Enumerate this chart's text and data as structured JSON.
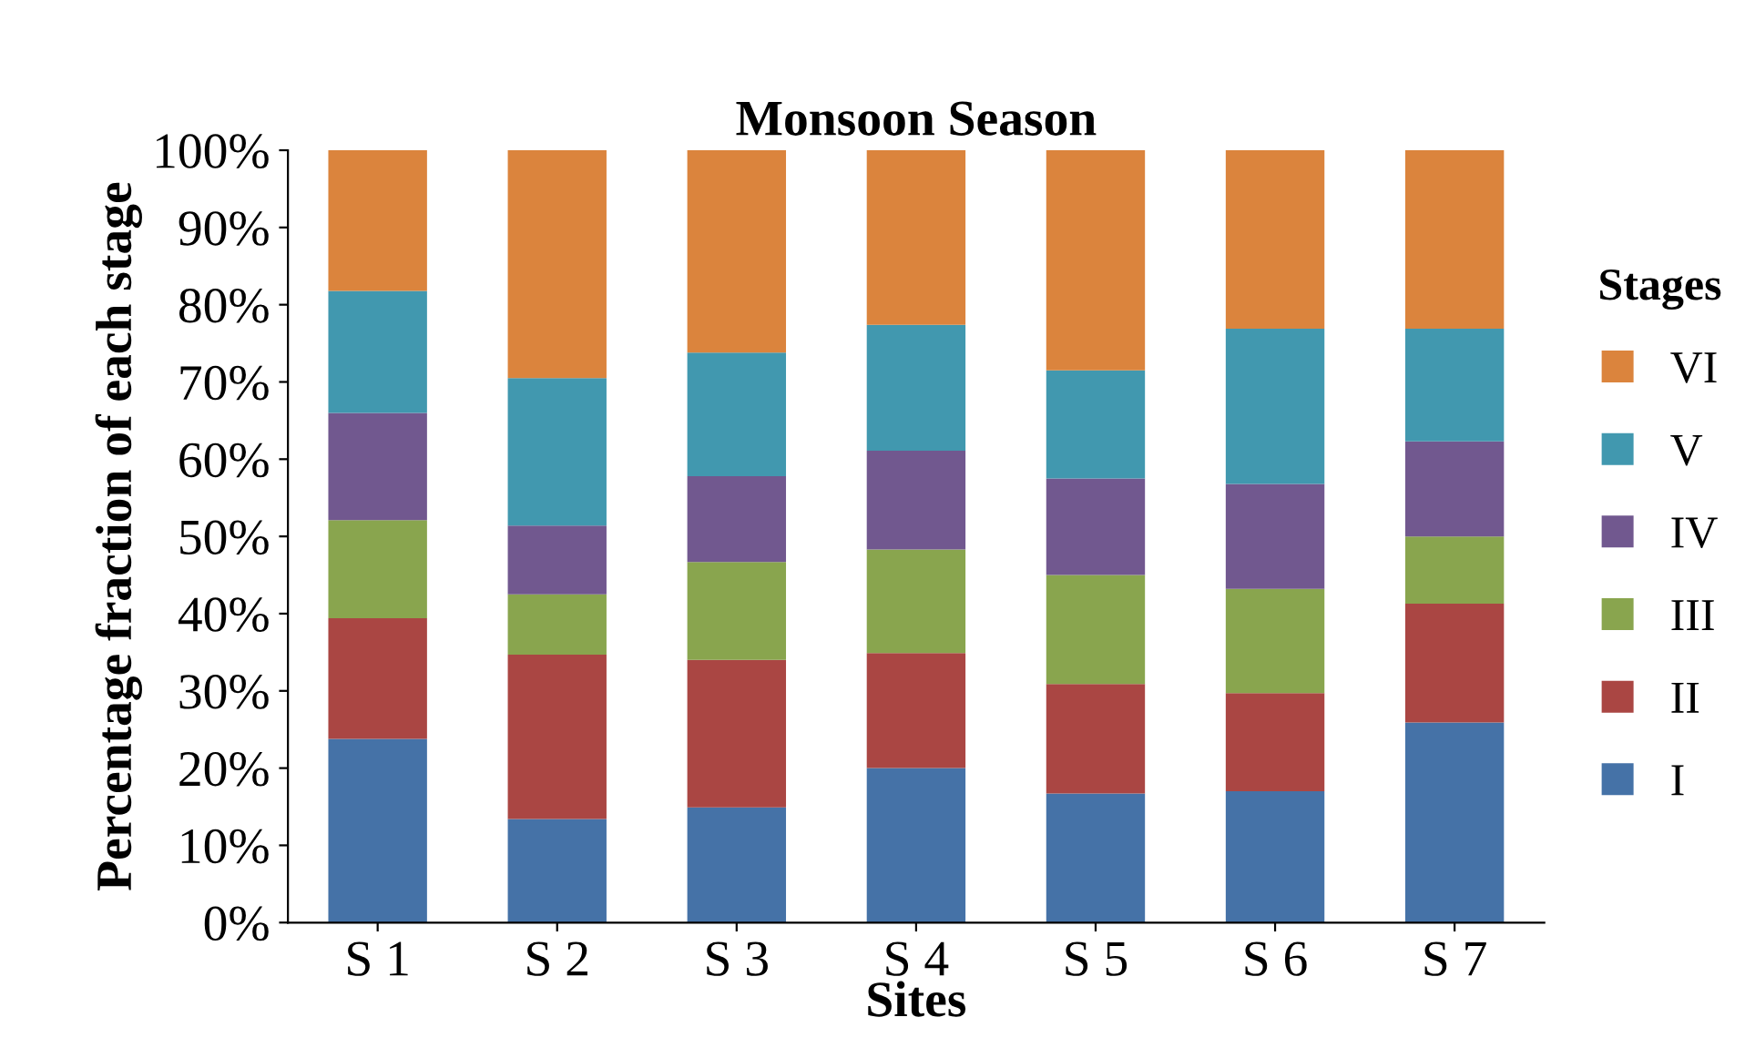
{
  "chart_data": {
    "type": "bar",
    "stacked": true,
    "title": "Monsoon Season",
    "xlabel": "Sites",
    "ylabel": "Percentage fraction of each stage",
    "legend_title": "Stages",
    "legend": "right",
    "categories": [
      "S 1",
      "S 2",
      "S 3",
      "S 4",
      "S 5",
      "S 6",
      "S 7"
    ],
    "series": [
      {
        "name": "I",
        "color": "#4572a7",
        "values": [
          23.8,
          13.4,
          14.9,
          20.0,
          16.7,
          17.0,
          25.9
        ]
      },
      {
        "name": "II",
        "color": "#aa4643",
        "values": [
          15.6,
          21.3,
          19.1,
          14.9,
          14.2,
          12.7,
          15.4
        ]
      },
      {
        "name": "III",
        "color": "#89a54e",
        "values": [
          12.7,
          7.8,
          12.7,
          13.4,
          14.1,
          13.5,
          8.7
        ]
      },
      {
        "name": "IV",
        "color": "#71588f",
        "values": [
          13.9,
          8.9,
          11.1,
          12.8,
          12.5,
          13.6,
          12.3
        ]
      },
      {
        "name": "V",
        "color": "#4198af",
        "values": [
          15.8,
          19.1,
          16.0,
          16.3,
          14.0,
          20.1,
          14.6
        ]
      },
      {
        "name": "VI",
        "color": "#db843d",
        "values": [
          18.2,
          29.5,
          26.2,
          22.6,
          28.5,
          23.1,
          23.1
        ]
      }
    ],
    "ylim": [
      0,
      100
    ],
    "yticks": [
      {
        "value": 0,
        "label": "0%"
      },
      {
        "value": 10,
        "label": "10%"
      },
      {
        "value": 20,
        "label": "20%"
      },
      {
        "value": 30,
        "label": "30%"
      },
      {
        "value": 40,
        "label": "40%"
      },
      {
        "value": 50,
        "label": "50%"
      },
      {
        "value": 60,
        "label": "60%"
      },
      {
        "value": 70,
        "label": "70%"
      },
      {
        "value": 80,
        "label": "80%"
      },
      {
        "value": 90,
        "label": "90%"
      },
      {
        "value": 100,
        "label": "100%"
      }
    ],
    "grid": false
  }
}
